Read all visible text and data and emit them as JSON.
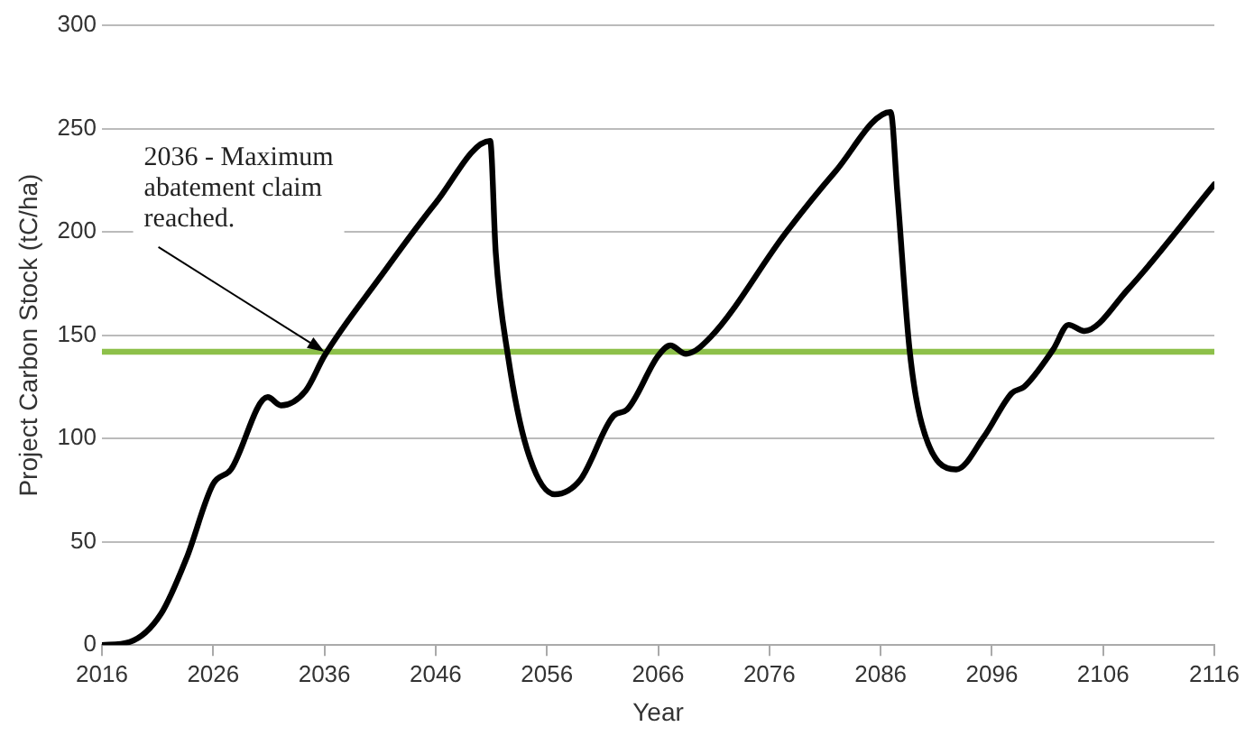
{
  "chart_data": {
    "type": "line",
    "xlabel": "Year",
    "ylabel": "Project Carbon Stock (tC/ha)",
    "x": [
      2016,
      2018.5,
      2021.3,
      2023.6,
      2026,
      2027.6,
      2030.9,
      2032.1,
      2034.3,
      2036,
      2041,
      2046,
      2050.9,
      2051.4,
      2052.5,
      2054.2,
      2056.7,
      2059,
      2062,
      2063.2,
      2066,
      2067.1,
      2068.5,
      2070.7,
      2077.4,
      2081.9,
      2086.9,
      2087.5,
      2088.6,
      2089.7,
      2092.8,
      2095.3,
      2097.8,
      2098.9,
      2101.5,
      2102.9,
      2104.3,
      2108.2,
      2116
    ],
    "series": [
      {
        "color": "#000000",
        "values": [
          0,
          1.5,
          15,
          42,
          78,
          85,
          120,
          116,
          123,
          140,
          178,
          214,
          244,
          190,
          140,
          95,
          73,
          80,
          111,
          114,
          140,
          145,
          141,
          149,
          199,
          229,
          258,
          219,
          143,
          107,
          85,
          101,
          122,
          125,
          143,
          155,
          152,
          172,
          223
        ]
      }
    ],
    "xlim": [
      2016,
      2116
    ],
    "xticks": [
      2016,
      2026,
      2036,
      2046,
      2056,
      2066,
      2076,
      2086,
      2096,
      2106,
      2116
    ],
    "ylim": [
      0,
      300
    ],
    "yticks": [
      0,
      50,
      100,
      150,
      200,
      250,
      300
    ],
    "grid": "y",
    "legend": false,
    "marker": "none",
    "line_style": "solid",
    "ref_lines": [
      {
        "axis": "y",
        "value": 142,
        "color": "#8dc04a"
      }
    ],
    "annotations": [
      {
        "text": "2036 - Maximum\nabatement claim\nreached.",
        "x": 2036,
        "y": 142
      }
    ]
  }
}
